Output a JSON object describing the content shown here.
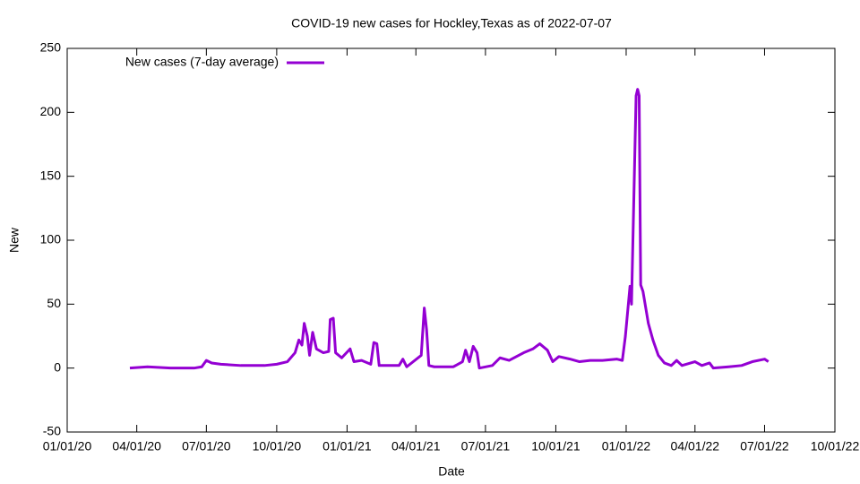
{
  "chart_data": {
    "type": "line",
    "title": "COVID-19 new cases for Hockley,Texas as of 2022-07-07",
    "xlabel": "Date",
    "ylabel": "New",
    "legend": "top-left",
    "grid": false,
    "xlim": [
      "2020-01-01",
      "2022-10-01"
    ],
    "xticks": [
      {
        "value": "2020-01-01",
        "label": "01/01/20"
      },
      {
        "value": "2020-04-01",
        "label": "04/01/20"
      },
      {
        "value": "2020-07-01",
        "label": "07/01/20"
      },
      {
        "value": "2020-10-01",
        "label": "10/01/20"
      },
      {
        "value": "2021-01-01",
        "label": "01/01/21"
      },
      {
        "value": "2021-04-01",
        "label": "04/01/21"
      },
      {
        "value": "2021-07-01",
        "label": "07/01/21"
      },
      {
        "value": "2021-10-01",
        "label": "10/01/21"
      },
      {
        "value": "2022-01-01",
        "label": "01/01/22"
      },
      {
        "value": "2022-04-01",
        "label": "04/01/22"
      },
      {
        "value": "2022-07-01",
        "label": "07/01/22"
      },
      {
        "value": "2022-10-01",
        "label": "10/01/22"
      }
    ],
    "ylim": [
      -50,
      250
    ],
    "yticks": [
      -50,
      0,
      50,
      100,
      150,
      200,
      250
    ],
    "x": [
      "2020-03-23",
      "2020-04-15",
      "2020-05-15",
      "2020-06-15",
      "2020-06-25",
      "2020-07-01",
      "2020-07-08",
      "2020-07-20",
      "2020-08-15",
      "2020-09-15",
      "2020-10-01",
      "2020-10-15",
      "2020-10-25",
      "2020-10-30",
      "2020-11-03",
      "2020-11-06",
      "2020-11-10",
      "2020-11-13",
      "2020-11-17",
      "2020-11-22",
      "2020-12-01",
      "2020-12-08",
      "2020-12-10",
      "2020-12-14",
      "2020-12-17",
      "2020-12-25",
      "2021-01-05",
      "2021-01-10",
      "2021-01-20",
      "2021-02-01",
      "2021-02-05",
      "2021-02-09",
      "2021-02-12",
      "2021-02-20",
      "2021-03-10",
      "2021-03-15",
      "2021-03-20",
      "2021-04-08",
      "2021-04-12",
      "2021-04-15",
      "2021-04-18",
      "2021-04-25",
      "2021-05-20",
      "2021-06-01",
      "2021-06-05",
      "2021-06-10",
      "2021-06-15",
      "2021-06-20",
      "2021-06-23",
      "2021-07-10",
      "2021-07-20",
      "2021-08-01",
      "2021-08-20",
      "2021-09-01",
      "2021-09-10",
      "2021-09-20",
      "2021-09-27",
      "2021-10-05",
      "2021-10-20",
      "2021-11-01",
      "2021-11-15",
      "2021-12-01",
      "2021-12-20",
      "2021-12-27",
      "2021-12-31",
      "2022-01-06",
      "2022-01-08",
      "2022-01-14",
      "2022-01-16",
      "2022-01-18",
      "2022-01-20",
      "2022-01-23",
      "2022-01-30",
      "2022-02-05",
      "2022-02-12",
      "2022-02-20",
      "2022-03-01",
      "2022-03-08",
      "2022-03-15",
      "2022-04-01",
      "2022-04-10",
      "2022-04-20",
      "2022-04-25",
      "2022-05-15",
      "2022-06-01",
      "2022-06-15",
      "2022-07-01",
      "2022-07-06"
    ],
    "series": [
      {
        "name": "New cases (7-day average)",
        "color": "#9400d3",
        "values": [
          0,
          1,
          0,
          0,
          1,
          6,
          4,
          3,
          2,
          2,
          3,
          5,
          12,
          22,
          18,
          35,
          25,
          10,
          28,
          15,
          12,
          13,
          38,
          39,
          12,
          8,
          15,
          5,
          6,
          3,
          20,
          19,
          2,
          2,
          2,
          7,
          1,
          10,
          47,
          30,
          2,
          1,
          1,
          5,
          14,
          5,
          17,
          12,
          0,
          2,
          8,
          6,
          12,
          15,
          19,
          14,
          5,
          9,
          7,
          5,
          6,
          6,
          7,
          6,
          25,
          64,
          50,
          213,
          218,
          213,
          65,
          60,
          35,
          22,
          10,
          4,
          2,
          6,
          2,
          5,
          2,
          4,
          0,
          1,
          2,
          5,
          7,
          5
        ]
      }
    ]
  }
}
